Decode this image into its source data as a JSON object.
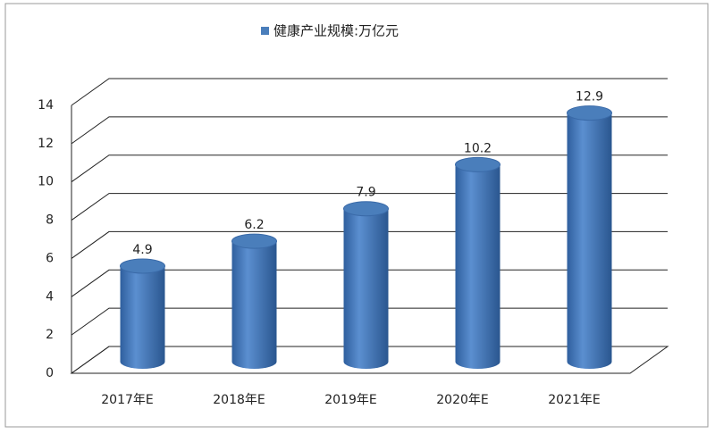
{
  "chart_data": {
    "type": "bar",
    "categories": [
      "2017年E",
      "2018年E",
      "2019年E",
      "2020年E",
      "2021年E"
    ],
    "series": [
      {
        "name": "健康产业规模:万亿元",
        "color": "#4a7ebb",
        "values": [
          4.9,
          6.2,
          7.9,
          10.2,
          12.9
        ]
      }
    ],
    "ylim": [
      0,
      14
    ],
    "yticks": [
      0,
      2,
      4,
      6,
      8,
      10,
      12,
      14
    ],
    "grid": true
  }
}
